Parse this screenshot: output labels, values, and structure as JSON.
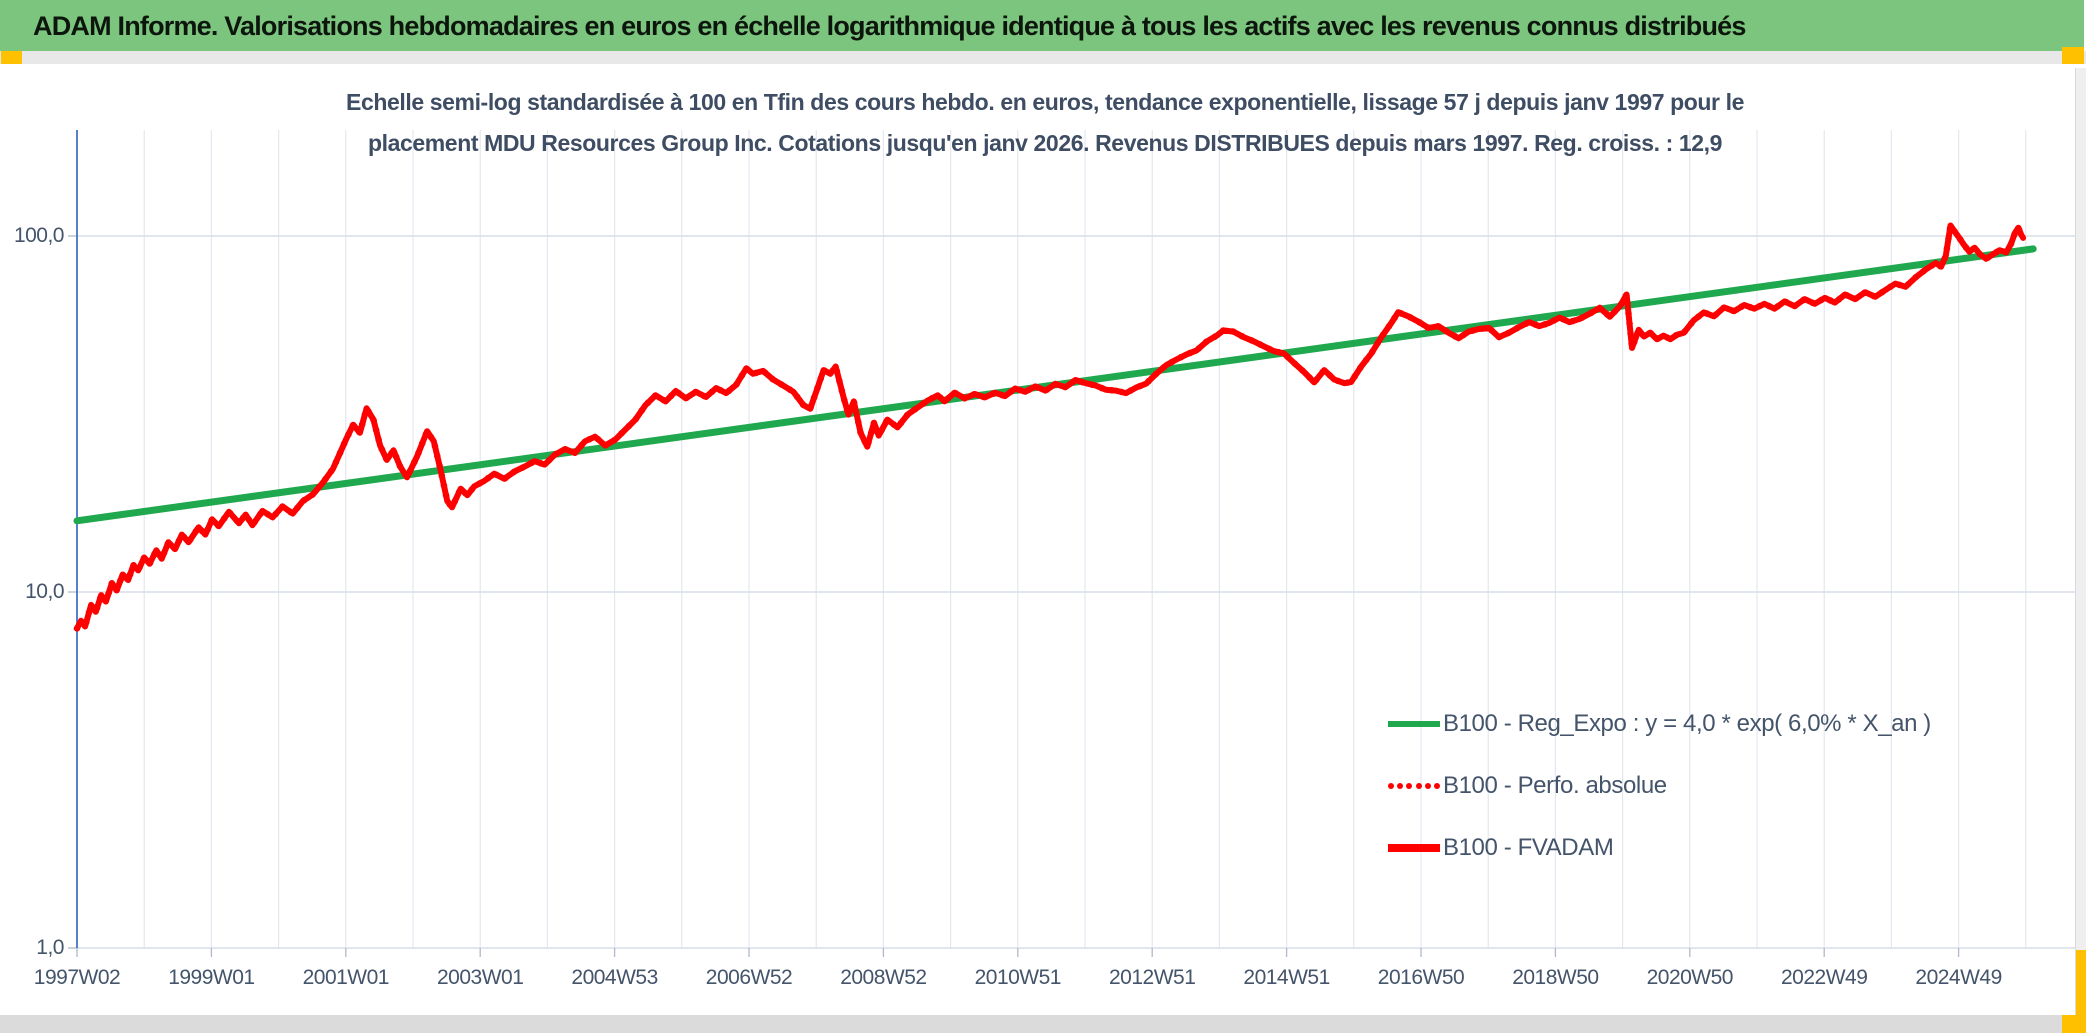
{
  "window": {
    "header_title": "ADAM Informe. Valorisations hebdomadaires en euros en échelle logarithmique identique à tous les actifs avec les revenus connus distribués"
  },
  "colors": {
    "header_bg": "#7CC57E",
    "header_text": "#0D160D",
    "accent_yellow": "#FFC000",
    "title_text": "#3E4D63",
    "axis_text": "#44546A",
    "grid": "#E3E8EF",
    "grid_major": "#D7DDE8",
    "tick": "#AEB9CA",
    "y_axis_line": "#4472C4",
    "trend_green": "#1FA84E",
    "series_red": "#FF0000"
  },
  "chart_data": {
    "type": "line",
    "title_lines": [
      "Echelle semi-log standardisée à 100 en Tfin des cours hebdo. en euros, tendance exponentielle, lissage 57 j depuis janv 1997 pour le",
      "placement MDU Resources Group Inc. Cotations jusqu'en janv 2026. Revenus DISTRIBUES depuis mars 1997. Reg. croiss. : 12,9"
    ],
    "x_axis": {
      "labels": [
        "1997W02",
        "1999W01",
        "2001W01",
        "2003W01",
        "2004W53",
        "2006W52",
        "2008W52",
        "2010W51",
        "2012W51",
        "2014W51",
        "2016W50",
        "2018W50",
        "2020W50",
        "2022W49",
        "2024W49"
      ],
      "label_interval": "2 years",
      "gridline_interval": "1 year",
      "range_years": [
        1997.04,
        2026.3
      ]
    },
    "y_axis": {
      "scale": "log",
      "tick_labels": [
        "100,0",
        "10,0",
        "1,0"
      ],
      "tick_values": [
        100,
        10,
        1
      ],
      "range": [
        1,
        126
      ]
    },
    "legend_position": "inside lower right, no border",
    "series": [
      {
        "name": "B100 - Reg_Expo : y = 4,0 * exp( 6,0% * X_an )",
        "color": "#1FA84E",
        "style": "solid",
        "width": 7,
        "points": [
          [
            1997.04,
            15.85
          ],
          [
            2026.15,
            92.0
          ]
        ]
      },
      {
        "name": "B100 - Perfo. absolue",
        "color": "#FF0000",
        "style": "dotted",
        "note": "coincides with B100 - FVADAM (revenues distributed, not reinvested)",
        "points_same_as_series": "B100 - FVADAM"
      },
      {
        "name": "B100 - FVADAM",
        "color": "#FF0000",
        "style": "solid",
        "width": 6,
        "points": [
          [
            1997.04,
            7.9
          ],
          [
            1997.1,
            8.3
          ],
          [
            1997.16,
            8.0
          ],
          [
            1997.25,
            9.2
          ],
          [
            1997.32,
            8.8
          ],
          [
            1997.4,
            9.8
          ],
          [
            1997.47,
            9.4
          ],
          [
            1997.56,
            10.6
          ],
          [
            1997.63,
            10.1
          ],
          [
            1997.72,
            11.2
          ],
          [
            1997.8,
            10.8
          ],
          [
            1997.88,
            11.9
          ],
          [
            1997.95,
            11.5
          ],
          [
            1998.04,
            12.5
          ],
          [
            1998.12,
            12.0
          ],
          [
            1998.22,
            13.1
          ],
          [
            1998.3,
            12.4
          ],
          [
            1998.4,
            13.8
          ],
          [
            1998.5,
            13.2
          ],
          [
            1998.6,
            14.5
          ],
          [
            1998.7,
            13.8
          ],
          [
            1998.85,
            15.2
          ],
          [
            1998.95,
            14.5
          ],
          [
            1999.05,
            16.0
          ],
          [
            1999.15,
            15.3
          ],
          [
            1999.3,
            16.8
          ],
          [
            1999.45,
            15.6
          ],
          [
            1999.55,
            16.5
          ],
          [
            1999.65,
            15.4
          ],
          [
            1999.8,
            16.9
          ],
          [
            1999.95,
            16.2
          ],
          [
            2000.1,
            17.4
          ],
          [
            2000.25,
            16.6
          ],
          [
            2000.4,
            18.0
          ],
          [
            2000.55,
            18.8
          ],
          [
            2000.7,
            20.3
          ],
          [
            2000.85,
            22.2
          ],
          [
            2000.95,
            24.5
          ],
          [
            2001.05,
            27.0
          ],
          [
            2001.15,
            29.5
          ],
          [
            2001.25,
            28.0
          ],
          [
            2001.35,
            32.8
          ],
          [
            2001.45,
            30.5
          ],
          [
            2001.55,
            25.8
          ],
          [
            2001.65,
            23.5
          ],
          [
            2001.75,
            25.0
          ],
          [
            2001.85,
            22.5
          ],
          [
            2001.95,
            21.0
          ],
          [
            2002.1,
            24.0
          ],
          [
            2002.25,
            28.3
          ],
          [
            2002.35,
            26.5
          ],
          [
            2002.45,
            22.0
          ],
          [
            2002.55,
            18.0
          ],
          [
            2002.62,
            17.3
          ],
          [
            2002.75,
            19.5
          ],
          [
            2002.85,
            18.7
          ],
          [
            2002.95,
            19.8
          ],
          [
            2003.1,
            20.5
          ],
          [
            2003.25,
            21.5
          ],
          [
            2003.4,
            20.8
          ],
          [
            2003.55,
            21.8
          ],
          [
            2003.7,
            22.5
          ],
          [
            2003.85,
            23.3
          ],
          [
            2004.0,
            22.8
          ],
          [
            2004.15,
            24.3
          ],
          [
            2004.3,
            25.2
          ],
          [
            2004.45,
            24.6
          ],
          [
            2004.6,
            26.5
          ],
          [
            2004.75,
            27.3
          ],
          [
            2004.9,
            25.8
          ],
          [
            2005.05,
            26.8
          ],
          [
            2005.2,
            28.6
          ],
          [
            2005.35,
            30.5
          ],
          [
            2005.5,
            33.5
          ],
          [
            2005.65,
            35.7
          ],
          [
            2005.8,
            34.3
          ],
          [
            2005.95,
            36.7
          ],
          [
            2006.1,
            35.0
          ],
          [
            2006.25,
            36.5
          ],
          [
            2006.4,
            35.3
          ],
          [
            2006.55,
            37.4
          ],
          [
            2006.7,
            36.2
          ],
          [
            2006.85,
            38.2
          ],
          [
            2007.0,
            42.5
          ],
          [
            2007.1,
            41.0
          ],
          [
            2007.25,
            41.8
          ],
          [
            2007.4,
            39.5
          ],
          [
            2007.55,
            38.0
          ],
          [
            2007.7,
            36.5
          ],
          [
            2007.85,
            33.5
          ],
          [
            2007.95,
            32.7
          ],
          [
            2008.05,
            37.0
          ],
          [
            2008.15,
            42.0
          ],
          [
            2008.25,
            41.0
          ],
          [
            2008.33,
            43.0
          ],
          [
            2008.45,
            35.0
          ],
          [
            2008.52,
            31.5
          ],
          [
            2008.6,
            34.3
          ],
          [
            2008.7,
            28.0
          ],
          [
            2008.8,
            25.6
          ],
          [
            2008.9,
            29.9
          ],
          [
            2008.97,
            27.5
          ],
          [
            2009.1,
            30.5
          ],
          [
            2009.25,
            29.0
          ],
          [
            2009.4,
            31.5
          ],
          [
            2009.55,
            33.0
          ],
          [
            2009.7,
            34.5
          ],
          [
            2009.85,
            35.7
          ],
          [
            2009.95,
            34.3
          ],
          [
            2010.1,
            36.3
          ],
          [
            2010.25,
            35.0
          ],
          [
            2010.4,
            36.0
          ],
          [
            2010.55,
            35.2
          ],
          [
            2010.7,
            36.3
          ],
          [
            2010.85,
            35.5
          ],
          [
            2011.0,
            37.3
          ],
          [
            2011.15,
            36.5
          ],
          [
            2011.3,
            37.8
          ],
          [
            2011.45,
            36.8
          ],
          [
            2011.6,
            38.4
          ],
          [
            2011.75,
            37.6
          ],
          [
            2011.9,
            39.4
          ],
          [
            2012.05,
            38.6
          ],
          [
            2012.2,
            38.0
          ],
          [
            2012.35,
            37.0
          ],
          [
            2012.5,
            36.8
          ],
          [
            2012.65,
            36.2
          ],
          [
            2012.8,
            37.5
          ],
          [
            2012.95,
            38.5
          ],
          [
            2013.1,
            41.0
          ],
          [
            2013.25,
            43.4
          ],
          [
            2013.4,
            45.0
          ],
          [
            2013.55,
            46.5
          ],
          [
            2013.7,
            47.7
          ],
          [
            2013.85,
            50.5
          ],
          [
            2014.0,
            52.5
          ],
          [
            2014.1,
            54.3
          ],
          [
            2014.25,
            53.9
          ],
          [
            2014.4,
            52.0
          ],
          [
            2014.55,
            50.6
          ],
          [
            2014.7,
            49.0
          ],
          [
            2014.85,
            47.5
          ],
          [
            2015.0,
            46.8
          ],
          [
            2015.15,
            44.0
          ],
          [
            2015.3,
            41.5
          ],
          [
            2015.45,
            38.8
          ],
          [
            2015.6,
            42.0
          ],
          [
            2015.75,
            39.5
          ],
          [
            2015.9,
            38.6
          ],
          [
            2016.0,
            38.9
          ],
          [
            2016.15,
            43.0
          ],
          [
            2016.3,
            46.8
          ],
          [
            2016.45,
            52.0
          ],
          [
            2016.6,
            57.0
          ],
          [
            2016.7,
            61.1
          ],
          [
            2016.85,
            59.5
          ],
          [
            2017.0,
            57.5
          ],
          [
            2017.15,
            55.2
          ],
          [
            2017.3,
            55.8
          ],
          [
            2017.45,
            53.5
          ],
          [
            2017.6,
            51.6
          ],
          [
            2017.75,
            53.9
          ],
          [
            2017.9,
            54.8
          ],
          [
            2018.05,
            55.2
          ],
          [
            2018.2,
            52.0
          ],
          [
            2018.35,
            53.5
          ],
          [
            2018.5,
            55.5
          ],
          [
            2018.65,
            57.3
          ],
          [
            2018.8,
            55.8
          ],
          [
            2018.95,
            57.0
          ],
          [
            2019.1,
            59.0
          ],
          [
            2019.25,
            57.3
          ],
          [
            2019.4,
            58.5
          ],
          [
            2019.55,
            60.5
          ],
          [
            2019.7,
            62.8
          ],
          [
            2019.85,
            59.3
          ],
          [
            2020.0,
            63.5
          ],
          [
            2020.1,
            68.5
          ],
          [
            2020.18,
            48.5
          ],
          [
            2020.28,
            54.5
          ],
          [
            2020.36,
            52.2
          ],
          [
            2020.45,
            53.5
          ],
          [
            2020.55,
            51.3
          ],
          [
            2020.65,
            52.5
          ],
          [
            2020.75,
            51.3
          ],
          [
            2020.85,
            52.8
          ],
          [
            2020.95,
            53.5
          ],
          [
            2021.1,
            58.0
          ],
          [
            2021.25,
            61.0
          ],
          [
            2021.4,
            59.5
          ],
          [
            2021.55,
            63.0
          ],
          [
            2021.7,
            61.5
          ],
          [
            2021.85,
            64.0
          ],
          [
            2022.0,
            62.5
          ],
          [
            2022.15,
            64.5
          ],
          [
            2022.3,
            62.5
          ],
          [
            2022.45,
            65.5
          ],
          [
            2022.6,
            63.5
          ],
          [
            2022.75,
            66.5
          ],
          [
            2022.9,
            64.5
          ],
          [
            2023.05,
            67.0
          ],
          [
            2023.2,
            65.0
          ],
          [
            2023.35,
            68.5
          ],
          [
            2023.5,
            66.5
          ],
          [
            2023.65,
            69.5
          ],
          [
            2023.8,
            67.5
          ],
          [
            2023.95,
            70.5
          ],
          [
            2024.1,
            73.5
          ],
          [
            2024.25,
            72.0
          ],
          [
            2024.4,
            76.5
          ],
          [
            2024.55,
            80.5
          ],
          [
            2024.7,
            84.0
          ],
          [
            2024.78,
            82.0
          ],
          [
            2024.85,
            88.0
          ],
          [
            2024.92,
            107.0
          ],
          [
            2024.98,
            103.0
          ],
          [
            2025.05,
            98.8
          ],
          [
            2025.12,
            94.4
          ],
          [
            2025.2,
            90.3
          ],
          [
            2025.28,
            92.7
          ],
          [
            2025.36,
            88.8
          ],
          [
            2025.45,
            86.3
          ],
          [
            2025.55,
            88.8
          ],
          [
            2025.65,
            91.2
          ],
          [
            2025.75,
            90.0
          ],
          [
            2025.82,
            95.0
          ],
          [
            2025.88,
            102.0
          ],
          [
            2025.93,
            105.5
          ],
          [
            2025.97,
            101.0
          ],
          [
            2026.0,
            98.8
          ]
        ]
      }
    ]
  }
}
